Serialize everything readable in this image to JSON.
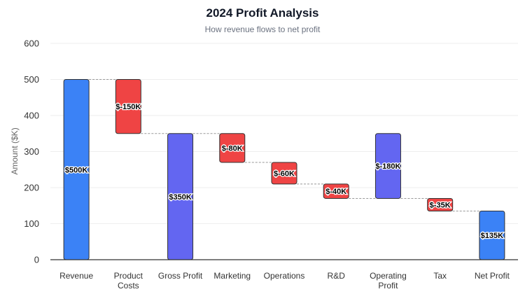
{
  "chart_data": {
    "type": "waterfall",
    "title": "2024 Profit Analysis",
    "subtitle": "How revenue flows to net profit",
    "ylabel": "Amount ($K)",
    "xlabel": "",
    "ylim": [
      0,
      600
    ],
    "yticks": [
      0,
      100,
      200,
      300,
      400,
      500,
      600
    ],
    "grid": true,
    "categories": [
      "Revenue",
      "Product Costs",
      "Gross Profit",
      "Marketing",
      "Operations",
      "R&D",
      "Operating Profit",
      "Tax",
      "Net Profit"
    ],
    "bars": [
      {
        "start": 0,
        "end": 500,
        "kind": "total",
        "label": "$500K"
      },
      {
        "start": 500,
        "end": 350,
        "kind": "decrease",
        "label": "$-150K"
      },
      {
        "start": 0,
        "end": 350,
        "kind": "subtotal",
        "label": "$350K"
      },
      {
        "start": 350,
        "end": 270,
        "kind": "decrease",
        "label": "$-80K"
      },
      {
        "start": 270,
        "end": 210,
        "kind": "decrease",
        "label": "$-60K"
      },
      {
        "start": 210,
        "end": 170,
        "kind": "decrease",
        "label": "$-40K"
      },
      {
        "start": 350,
        "end": 170,
        "kind": "subtotal",
        "label": "$-180K"
      },
      {
        "start": 170,
        "end": 135,
        "kind": "decrease",
        "label": "$-35K"
      },
      {
        "start": 0,
        "end": 135,
        "kind": "total",
        "label": "$135K"
      }
    ],
    "colors": {
      "total": "#3b82f6",
      "subtotal": "#6366f1",
      "decrease": "#ef4444",
      "connector": "#999999",
      "grid": "#eeeeee"
    }
  }
}
